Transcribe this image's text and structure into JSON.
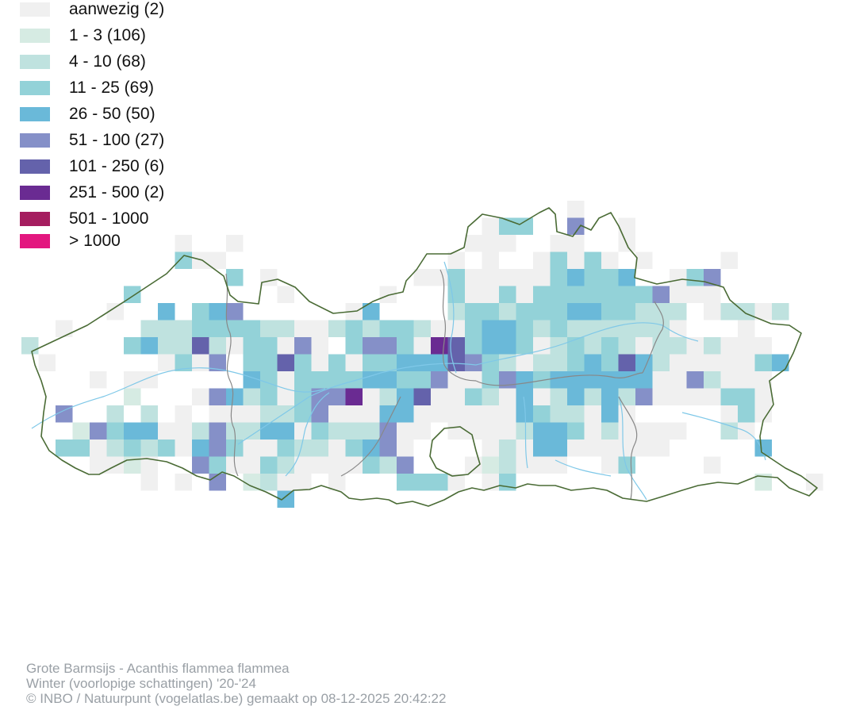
{
  "legend": {
    "items": [
      {
        "label": "aanwezig (2)",
        "color": "#f0f0f0"
      },
      {
        "label": "1 - 3 (106)",
        "color": "#d6ebe3"
      },
      {
        "label": "4 - 10 (68)",
        "color": "#bfe2df"
      },
      {
        "label": "11 - 25 (69)",
        "color": "#93d2d8"
      },
      {
        "label": "26 - 50 (50)",
        "color": "#6ab9d9"
      },
      {
        "label": "51 - 100 (27)",
        "color": "#8590c8"
      },
      {
        "label": "101 - 250 (6)",
        "color": "#6462ab"
      },
      {
        "label": "251 - 500 (2)",
        "color": "#6a2b92"
      },
      {
        "label": "501 - 1000",
        "color": "#a51d5f"
      },
      {
        "label": "> 1000",
        "color": "#e3177f"
      }
    ]
  },
  "map": {
    "border_color": "#4a6b35",
    "province_border_color": "#888888",
    "river_color": "#7fc8e8"
  },
  "footer": {
    "species": "Grote Barmsijs - Acanthis flammea flammea",
    "season": "Winter (voorlopige schattingen) '20-'24",
    "credit": "© INBO / Natuurpunt (vogelatlas.be) gemaakt op 08-12-2025 20:42:22"
  }
}
